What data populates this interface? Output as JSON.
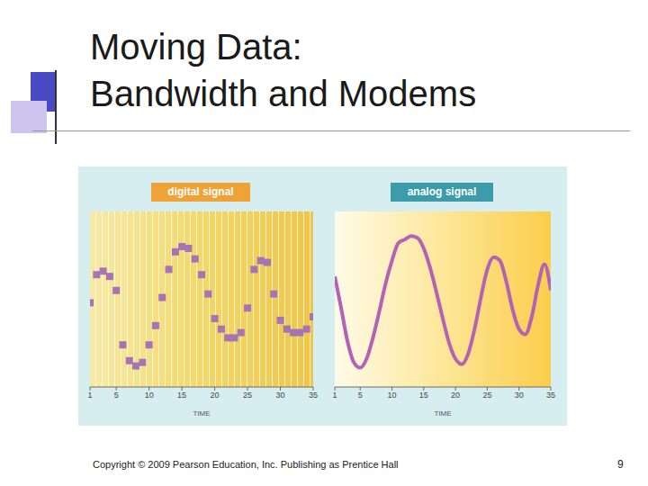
{
  "slide": {
    "title": [
      "Moving Data:",
      "Bandwidth and Modems"
    ],
    "footer": "Copyright © 2009 Pearson Education, Inc. Publishing as Prentice Hall",
    "page_number": 9
  },
  "chart_data": [
    {
      "type": "scatter",
      "title": "digital signal",
      "x_label": "TIME",
      "x": [
        1,
        2,
        3,
        4,
        5,
        6,
        7,
        8,
        9,
        10,
        11,
        12,
        13,
        14,
        15,
        16,
        17,
        18,
        19,
        20,
        21,
        22,
        23,
        24,
        25,
        26,
        27,
        28,
        29,
        30,
        31,
        32,
        33,
        34,
        35
      ],
      "values": [
        4.8,
        6.4,
        6.6,
        6.3,
        5.5,
        2.4,
        1.5,
        1.2,
        1.4,
        2.4,
        3.5,
        5.1,
        6.7,
        7.7,
        8.0,
        7.9,
        7.3,
        6.4,
        5.3,
        3.9,
        3.3,
        2.8,
        2.8,
        3.1,
        4.5,
        6.7,
        7.2,
        7.1,
        5.3,
        3.8,
        3.3,
        3.1,
        3.1,
        3.3,
        4.0
      ],
      "color": "#a474b4",
      "marker": "square",
      "xlim": [
        1,
        35
      ],
      "xticks": [
        1,
        5,
        10,
        15,
        20,
        25,
        30,
        35
      ],
      "ylim": [
        0,
        10
      ],
      "tick_labels": "x"
    },
    {
      "type": "line",
      "title": "analog signal",
      "x_label": "TIME",
      "x": [
        1,
        2,
        3,
        4,
        5,
        6,
        7,
        8,
        9,
        10,
        11,
        12,
        13,
        14,
        15,
        16,
        17,
        18,
        19,
        20,
        21,
        22,
        23,
        24,
        25,
        26,
        27,
        28,
        29,
        30,
        31,
        32,
        33,
        34,
        35
      ],
      "values": [
        6.3,
        4.5,
        2.6,
        1.4,
        1.1,
        1.6,
        2.8,
        4.3,
        5.9,
        7.2,
        8.2,
        8.4,
        8.6,
        8.5,
        7.9,
        6.8,
        5.4,
        3.9,
        2.5,
        1.6,
        1.3,
        1.9,
        3.3,
        5.1,
        6.7,
        7.4,
        7.2,
        6.0,
        4.4,
        3.3,
        3.0,
        4.0,
        5.8,
        7.0,
        5.5
      ],
      "color": "#b462b4",
      "line_style": "solid",
      "xlim": [
        1,
        35
      ],
      "xticks": [
        1,
        5,
        10,
        15,
        20,
        25,
        30,
        35
      ],
      "ylim": [
        0,
        10
      ],
      "tick_labels": "x"
    }
  ]
}
